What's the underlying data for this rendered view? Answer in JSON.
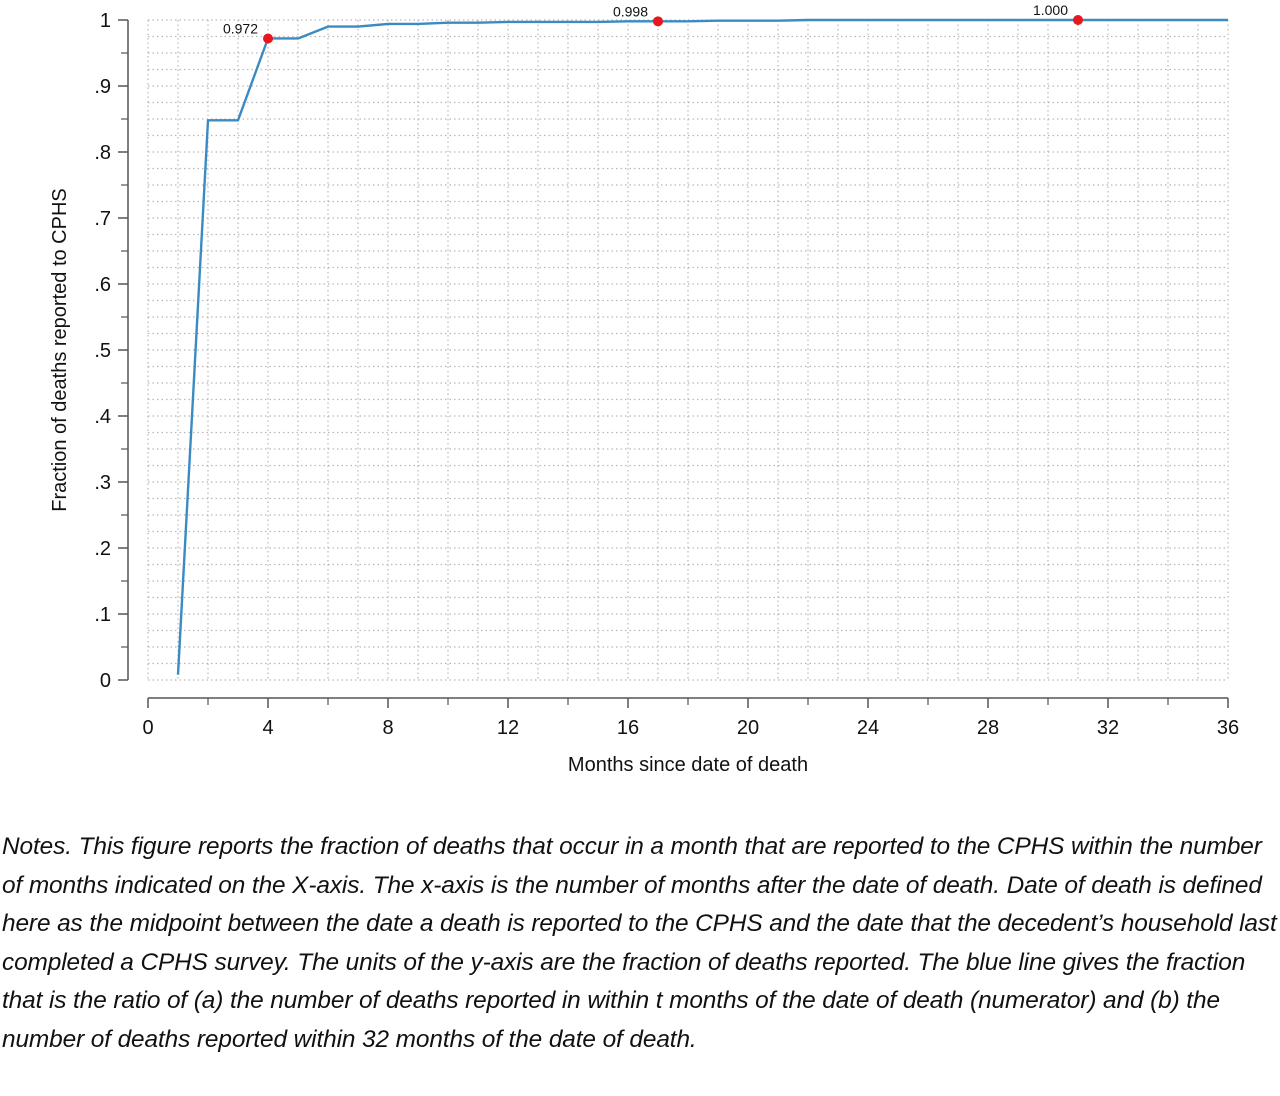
{
  "chart_data": {
    "type": "line",
    "title": "",
    "xlabel": "Months since date of death",
    "ylabel": "Fraction of deaths reported to CPHS",
    "xlim": [
      0,
      36
    ],
    "ylim": [
      0,
      1
    ],
    "x_ticks": [
      0,
      4,
      8,
      12,
      16,
      20,
      24,
      28,
      32,
      36
    ],
    "x_minor_ticks": [
      2,
      6,
      10,
      14,
      18,
      22,
      26,
      30,
      34
    ],
    "y_ticks": [
      0,
      0.1,
      0.2,
      0.3,
      0.4,
      0.5,
      0.6,
      0.7,
      0.8,
      0.9,
      1
    ],
    "y_tick_labels": [
      "0",
      ".1",
      ".2",
      ".3",
      ".4",
      ".5",
      ".6",
      ".7",
      ".8",
      ".9",
      "1"
    ],
    "grid": true,
    "series": [
      {
        "color": "#3b8bc2",
        "x": [
          1,
          2,
          3,
          4,
          5,
          6,
          7,
          8,
          9,
          10,
          11,
          12,
          13,
          14,
          15,
          16,
          17,
          18,
          19,
          20,
          21,
          22,
          23,
          24,
          25,
          26,
          27,
          28,
          29,
          30,
          31,
          32,
          33,
          34,
          35,
          36
        ],
        "y": [
          0.008,
          0.848,
          0.848,
          0.972,
          0.972,
          0.99,
          0.99,
          0.994,
          0.994,
          0.996,
          0.996,
          0.997,
          0.997,
          0.997,
          0.997,
          0.998,
          0.998,
          0.998,
          0.999,
          0.999,
          0.999,
          1.0,
          1.0,
          1.0,
          1.0,
          1.0,
          1.0,
          1.0,
          1.0,
          1.0,
          1.0,
          1.0,
          1.0,
          1.0,
          1.0,
          1.0
        ]
      }
    ],
    "highlighted_points": [
      {
        "x": 4,
        "y": 0.972,
        "label": "0.972",
        "color": "#e8171d"
      },
      {
        "x": 17,
        "y": 0.998,
        "label": "0.998",
        "color": "#e8171d"
      },
      {
        "x": 31,
        "y": 1.0,
        "label": "1.000",
        "color": "#e8171d"
      }
    ]
  },
  "notes": "Notes. This figure reports the fraction of deaths that occur in a month that are reported to the CPHS within the number of months indicated on the X-axis.  The x-axis is the number of months after the date of death.  Date of death is defined here as the midpoint between the date a death is reported to the CPHS and the date that the decedent’s household last completed a CPHS survey.  The units of the y-axis are the fraction of deaths reported. The blue line gives the fraction that is the ratio of (a) the number of deaths reported in within t months of the date of death (numerator) and (b) the number of deaths reported within 32 months of the date of death."
}
